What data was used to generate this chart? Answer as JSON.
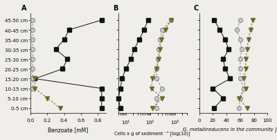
{
  "depths": [
    "45-50 cm",
    "40-45 cm",
    "35-40 cm",
    "30-35 cm",
    "25-30 cm",
    "20-25 cm",
    "15-20 cm",
    "10-15 cm",
    "5-10 cm",
    "0-5 cm"
  ],
  "depth_y": [
    9,
    8,
    7,
    6,
    5,
    4,
    3,
    2,
    1,
    0
  ],
  "panelA_squares": [
    0.85,
    0.46,
    0.4,
    0.3,
    0.44,
    0.38,
    0.05,
    0.85,
    0.85,
    0.85
  ],
  "panelA_circles": [
    0.02,
    0.02,
    0.02,
    0.02,
    0.02,
    0.02,
    0.02,
    0.02,
    null,
    null
  ],
  "panelA_triangles": [
    null,
    null,
    null,
    null,
    null,
    null,
    0.05,
    0.05,
    0.2,
    0.35
  ],
  "panelB_squares": [
    80,
    55,
    35,
    22,
    16,
    10,
    7,
    6,
    5,
    6
  ],
  "panelB_circles": [
    700,
    300,
    250,
    220,
    200,
    180,
    180,
    300,
    180,
    180
  ],
  "panelB_triangles": [
    700,
    400,
    280,
    250,
    220,
    180,
    120,
    110,
    300,
    120
  ],
  "panelC_squares": [
    22,
    30,
    38,
    43,
    35,
    38,
    45,
    20,
    35,
    22
  ],
  "panelC_circles": [
    60,
    55,
    60,
    62,
    60,
    60,
    60,
    65,
    60,
    58
  ],
  "panelC_triangles": [
    78,
    75,
    72,
    70,
    68,
    68,
    65,
    68,
    58,
    70
  ],
  "square_color": "#111111",
  "circle_facecolor": "#c8c8c8",
  "circle_edgecolor": "#666666",
  "triangle_color": "#6b6b2a",
  "panelA_xlim": [
    0.0,
    0.9
  ],
  "panelA_xticks": [
    0.0,
    0.2,
    0.4,
    0.6,
    0.8
  ],
  "panelA_xlabel": "Benzoate [mM]",
  "panelB_xlim_log": [
    5,
    3000
  ],
  "panelB_xlabel": "Cells x g of sediment ⁻¹ [log(10)]",
  "panelC_xlim": [
    0,
    100
  ],
  "panelC_xticks": [
    0,
    20,
    40,
    60,
    80,
    100
  ],
  "panelC_xlabel": "G. metallireducens in the community [%]",
  "panel_labels": [
    "A",
    "B",
    "C"
  ],
  "bg_color": "#f0eeea"
}
